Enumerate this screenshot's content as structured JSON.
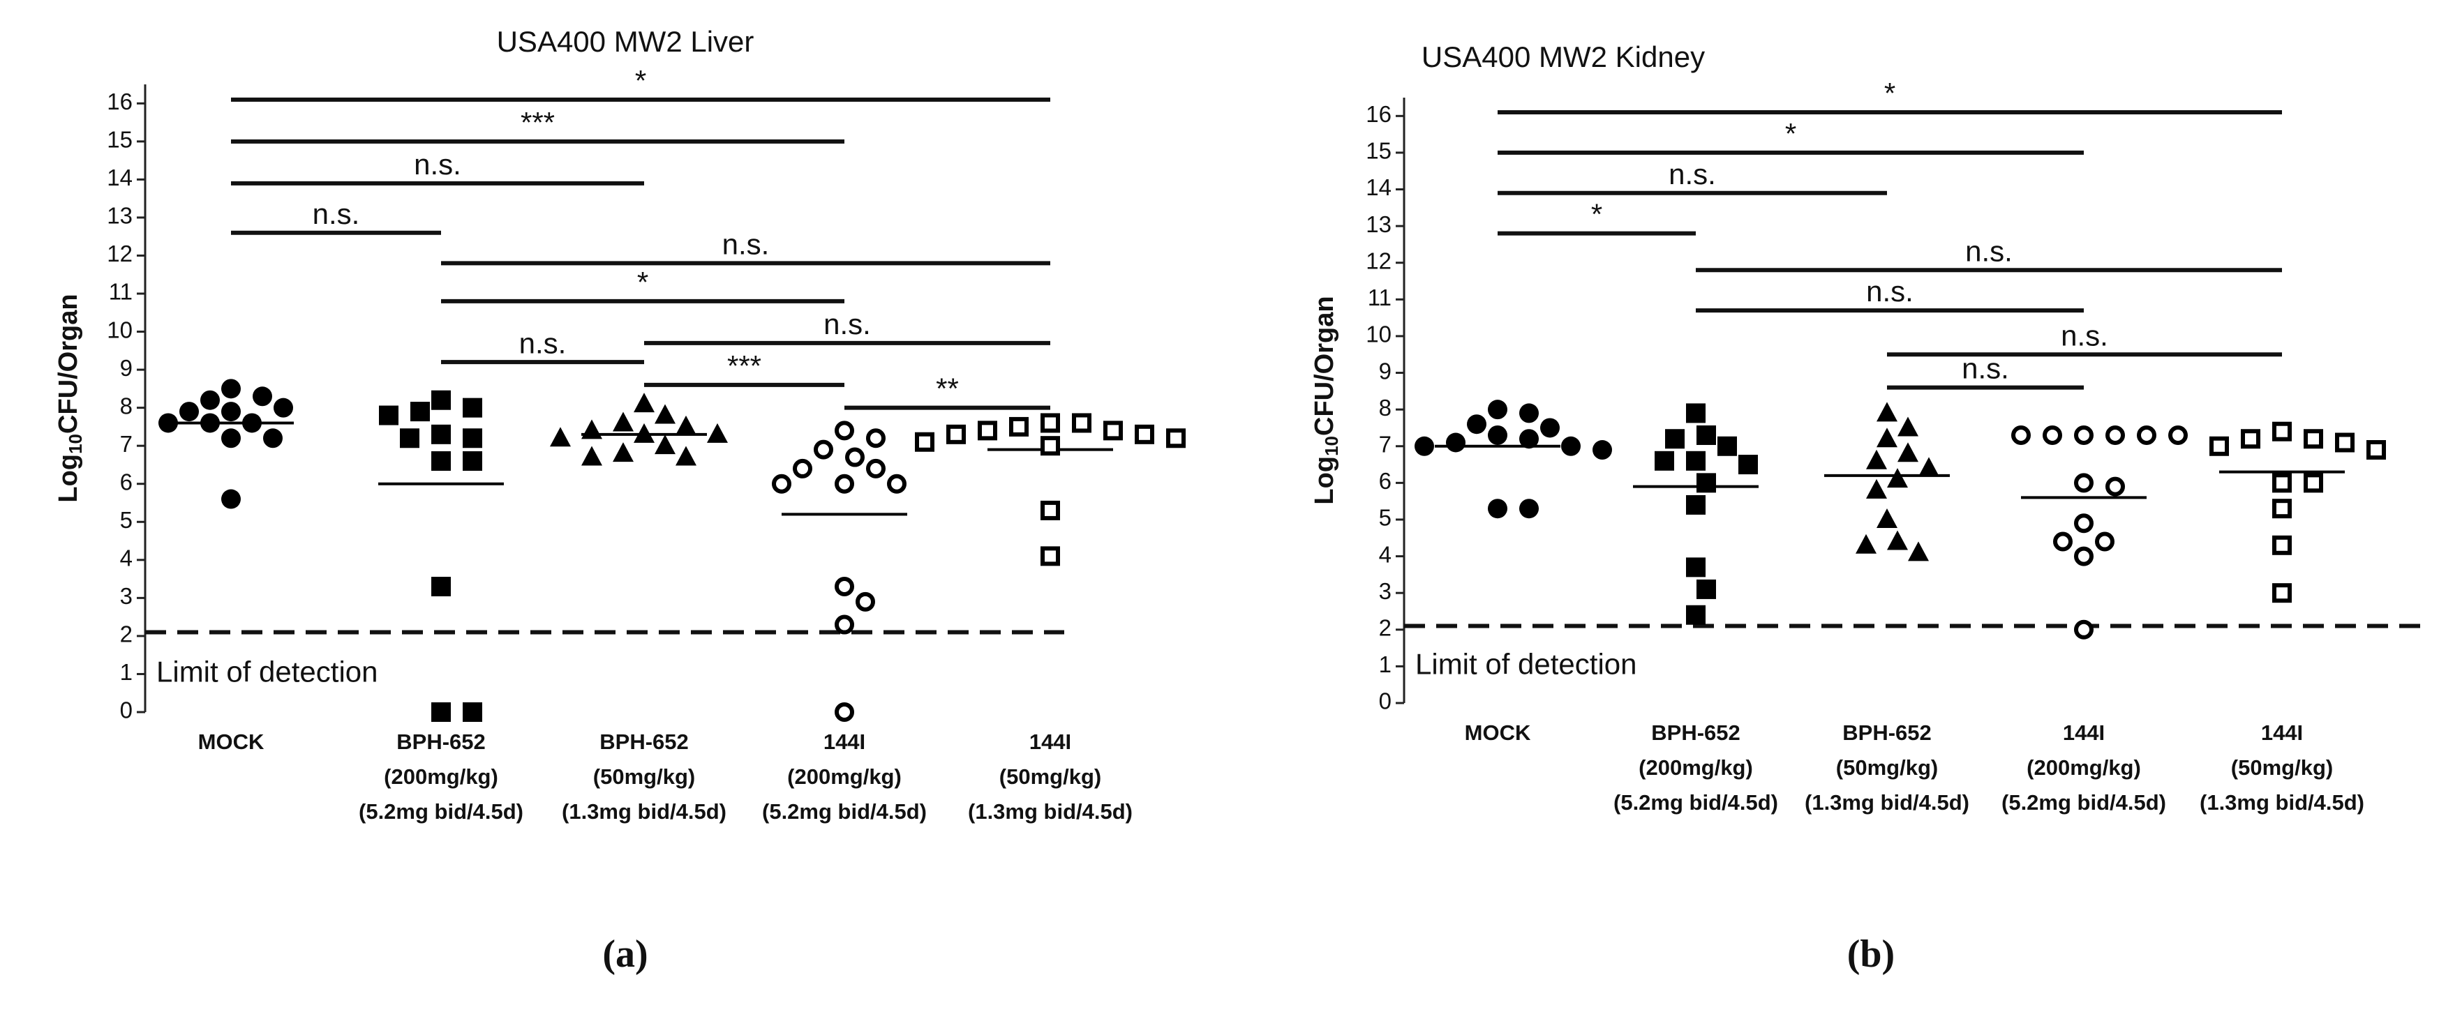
{
  "chart_data": [
    {
      "type": "dot",
      "title": "USA400 MW2 Liver",
      "panel_label": "(a)",
      "ylabel": {
        "prefix": "Log",
        "sub": "10",
        "suffix": "CFU/Organ"
      },
      "ylim": [
        0,
        16.5
      ],
      "yticks": [
        0,
        1,
        2,
        3,
        4,
        5,
        6,
        7,
        8,
        9,
        10,
        11,
        12,
        13,
        14,
        15,
        16
      ],
      "color": "#000000",
      "categories": [
        [
          "MOCK"
        ],
        [
          "BPH-652",
          "(200mg/kg)",
          "(5.2mg bid/4.5d)"
        ],
        [
          "BPH-652",
          "(50mg/kg)",
          "(1.3mg bid/4.5d)"
        ],
        [
          "144I",
          "(200mg/kg)",
          "(5.2mg bid/4.5d)"
        ],
        [
          "144I",
          "(50mg/kg)",
          "(1.3mg bid/4.5d)"
        ]
      ],
      "groups": [
        {
          "marker": "circle-filled",
          "mean": 7.6,
          "values": [
            8.5,
            8.3,
            8.2,
            8.0,
            7.9,
            7.9,
            7.6,
            7.6,
            7.6,
            7.2,
            7.2,
            5.6
          ]
        },
        {
          "marker": "square-filled",
          "mean": 6.0,
          "values": [
            8.2,
            8.0,
            7.9,
            7.8,
            7.3,
            7.2,
            7.2,
            6.6,
            6.6,
            3.3,
            0,
            0
          ]
        },
        {
          "marker": "triangle-filled",
          "mean": 7.3,
          "values": [
            8.1,
            7.8,
            7.6,
            7.5,
            7.4,
            7.3,
            7.3,
            7.2,
            7.0,
            6.8,
            6.7,
            6.7
          ]
        },
        {
          "marker": "circle-open",
          "mean": 5.2,
          "values": [
            7.4,
            7.2,
            6.9,
            6.7,
            6.4,
            6.4,
            6.0,
            6.0,
            6.0,
            3.3,
            2.9,
            2.3,
            0
          ]
        },
        {
          "marker": "square-open",
          "mean": 6.9,
          "values": [
            7.6,
            7.6,
            7.5,
            7.4,
            7.4,
            7.3,
            7.3,
            7.2,
            7.1,
            7.0,
            5.3,
            4.1
          ]
        }
      ],
      "lod": 2.1,
      "lod_label": "Limit of detection",
      "comparisons": [
        {
          "from": 0,
          "to": 4,
          "y": 16.1,
          "label": "*"
        },
        {
          "from": 0,
          "to": 3,
          "y": 15.0,
          "label": "***"
        },
        {
          "from": 0,
          "to": 2,
          "y": 13.9,
          "label": "n.s."
        },
        {
          "from": 0,
          "to": 1,
          "y": 12.6,
          "label": "n.s."
        },
        {
          "from": 1,
          "to": 4,
          "y": 11.8,
          "label": "n.s."
        },
        {
          "from": 1,
          "to": 3,
          "y": 10.8,
          "label": "*"
        },
        {
          "from": 1,
          "to": 2,
          "y": 9.2,
          "label": "n.s."
        },
        {
          "from": 2,
          "to": 4,
          "y": 9.7,
          "label": "n.s."
        },
        {
          "from": 2,
          "to": 3,
          "y": 8.6,
          "label": "***"
        },
        {
          "from": 3,
          "to": 4,
          "y": 8.0,
          "label": "**"
        }
      ]
    },
    {
      "type": "dot",
      "title": "USA400 MW2 Kidney",
      "panel_label": "(b)",
      "ylabel": {
        "prefix": "Log",
        "sub": "10",
        "suffix": "CFU/Organ"
      },
      "ylim": [
        0,
        16.5
      ],
      "yticks": [
        0,
        1,
        2,
        3,
        4,
        5,
        6,
        7,
        8,
        9,
        10,
        11,
        12,
        13,
        14,
        15,
        16
      ],
      "color": "#000000",
      "categories": [
        [
          "MOCK"
        ],
        [
          "BPH-652",
          "(200mg/kg)",
          "(5.2mg bid/4.5d)"
        ],
        [
          "BPH-652",
          "(50mg/kg)",
          "(1.3mg bid/4.5d)"
        ],
        [
          "144I",
          "(200mg/kg)",
          "(5.2mg bid/4.5d)"
        ],
        [
          "144I",
          "(50mg/kg)",
          "(1.3mg bid/4.5d)"
        ]
      ],
      "groups": [
        {
          "marker": "circle-filled",
          "mean": 7.0,
          "values": [
            8.0,
            7.9,
            7.6,
            7.5,
            7.3,
            7.2,
            7.1,
            7.0,
            7.0,
            6.9,
            5.3,
            5.3
          ]
        },
        {
          "marker": "square-filled",
          "mean": 5.9,
          "values": [
            7.9,
            7.3,
            7.2,
            7.0,
            6.6,
            6.6,
            6.5,
            6.0,
            5.4,
            3.7,
            3.1,
            2.4
          ]
        },
        {
          "marker": "triangle-filled",
          "mean": 6.2,
          "values": [
            7.9,
            7.5,
            7.2,
            6.8,
            6.6,
            6.4,
            6.1,
            5.8,
            5.0,
            4.4,
            4.3,
            4.1
          ]
        },
        {
          "marker": "circle-open",
          "mean": 5.6,
          "values": [
            7.3,
            7.3,
            7.3,
            7.3,
            7.3,
            7.3,
            6.0,
            5.9,
            4.9,
            4.4,
            4.4,
            4.0,
            2.0
          ]
        },
        {
          "marker": "square-open",
          "mean": 6.3,
          "values": [
            7.4,
            7.2,
            7.2,
            7.1,
            7.0,
            6.9,
            6.0,
            6.0,
            5.3,
            4.3,
            3.0
          ]
        }
      ],
      "lod": 2.1,
      "lod_label": "Limit of detection",
      "comparisons": [
        {
          "from": 0,
          "to": 4,
          "y": 16.1,
          "label": "*"
        },
        {
          "from": 0,
          "to": 3,
          "y": 15.0,
          "label": "*"
        },
        {
          "from": 0,
          "to": 2,
          "y": 13.9,
          "label": "n.s."
        },
        {
          "from": 0,
          "to": 1,
          "y": 12.8,
          "label": "*"
        },
        {
          "from": 1,
          "to": 4,
          "y": 11.8,
          "label": "n.s."
        },
        {
          "from": 1,
          "to": 3,
          "y": 10.7,
          "label": "n.s."
        },
        {
          "from": 2,
          "to": 4,
          "y": 9.5,
          "label": "n.s."
        },
        {
          "from": 2,
          "to": 3,
          "y": 8.6,
          "label": "n.s."
        }
      ]
    }
  ]
}
